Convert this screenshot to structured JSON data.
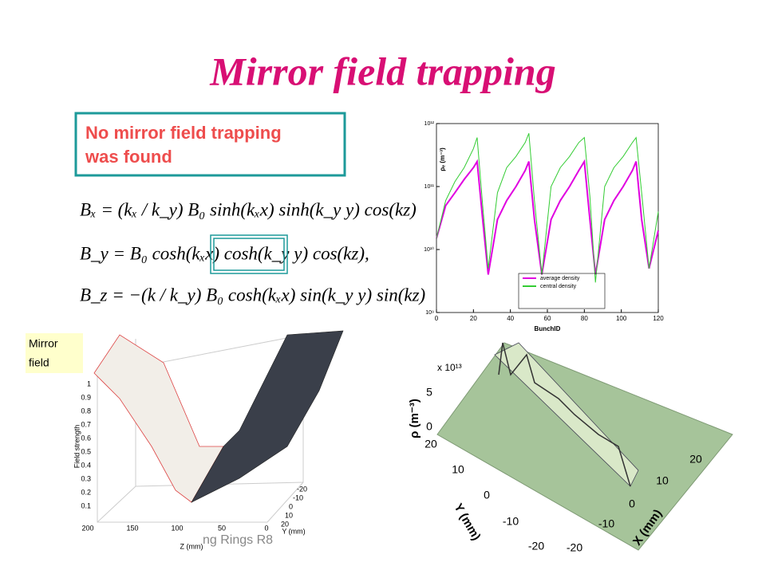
{
  "title": "Mirror field trapping",
  "note": [
    "No mirror field  trapping",
    "was found"
  ],
  "equations": [
    "Bₓ = (kₓ / k_y) B₀ sinh(kₓx) sinh(k_y y) cos(kz)",
    "B_y = B₀ cosh(kₓx) cosh(k_y y) cos(kz),",
    "B_z = −(k / k_y) B₀ cosh(kₓx) sin(k_y y) sin(kz)"
  ],
  "mirror_label": [
    "Mirror",
    "field"
  ],
  "footer": "ng Rings R8",
  "chart_data": {
    "type": "line",
    "xlabel": "BunchID",
    "ylabel": "ρₑ (m⁻³)",
    "log_y": true,
    "xlim": [
      0,
      120
    ],
    "xticks": [
      0,
      20,
      40,
      60,
      80,
      100,
      120
    ],
    "ylim": [
      1000000000.0,
      1000000000000.0
    ],
    "yticks": [
      {
        "value": 1000000000.0,
        "label": "10⁹"
      },
      {
        "value": 10000000000.0,
        "label": "10¹⁰"
      },
      {
        "value": 100000000000.0,
        "label": "10¹¹"
      },
      {
        "value": 1000000000000.0,
        "label": "10¹²"
      }
    ],
    "x": [
      0,
      5,
      10,
      15,
      20,
      22,
      25,
      28,
      33,
      38,
      43,
      48,
      50,
      53,
      57,
      62,
      67,
      72,
      77,
      80,
      83,
      86,
      91,
      96,
      101,
      106,
      108,
      111,
      115,
      120
    ],
    "series": [
      {
        "name": "average density",
        "color": "#e000e0",
        "values": [
          15000000000.0,
          50000000000.0,
          80000000000.0,
          130000000000.0,
          200000000000.0,
          250000000000.0,
          30000000000.0,
          4000000000.0,
          30000000000.0,
          60000000000.0,
          100000000000.0,
          180000000000.0,
          250000000000.0,
          30000000000.0,
          4000000000.0,
          30000000000.0,
          60000000000.0,
          100000000000.0,
          180000000000.0,
          250000000000.0,
          30000000000.0,
          4000000000.0,
          30000000000.0,
          60000000000.0,
          100000000000.0,
          180000000000.0,
          250000000000.0,
          30000000000.0,
          5000000000.0,
          20000000000.0
        ]
      },
      {
        "name": "central density",
        "color": "#33cc33",
        "values": [
          15000000000.0,
          60000000000.0,
          120000000000.0,
          200000000000.0,
          400000000000.0,
          600000000000.0,
          50000000000.0,
          5000000000.0,
          80000000000.0,
          200000000000.0,
          300000000000.0,
          500000000000.0,
          700000000000.0,
          60000000000.0,
          4000000000.0,
          100000000000.0,
          200000000000.0,
          300000000000.0,
          500000000000.0,
          600000000000.0,
          70000000000.0,
          3000000000.0,
          100000000000.0,
          200000000000.0,
          300000000000.0,
          500000000000.0,
          600000000000.0,
          80000000000.0,
          5000000000.0,
          40000000000.0
        ]
      }
    ]
  },
  "field_plot": {
    "zlabel": "Field strength",
    "xlabel": "Z (mm)",
    "ylabel": "Y (mm)",
    "zticks": [
      "1",
      "0.9",
      "0.8",
      "0.7",
      "0.6",
      "0.5",
      "0.4",
      "0.3",
      "0.2",
      "0.1"
    ],
    "xticks": [
      "200",
      "150",
      "100",
      "50",
      "0"
    ],
    "yticks": [
      "-20",
      "-10",
      "0",
      "10",
      "20"
    ]
  },
  "density_plot": {
    "scale": "x 10¹³",
    "zlabel": "ρ (m⁻³)",
    "ylabel": "Y  (mm)",
    "xlabel": "X  (mm)",
    "zticks": [
      "5",
      "0"
    ],
    "yticks": [
      "20",
      "10",
      "0",
      "-10",
      "-20"
    ],
    "xticks": [
      "-20",
      "-10",
      "0",
      "10",
      "20"
    ]
  }
}
